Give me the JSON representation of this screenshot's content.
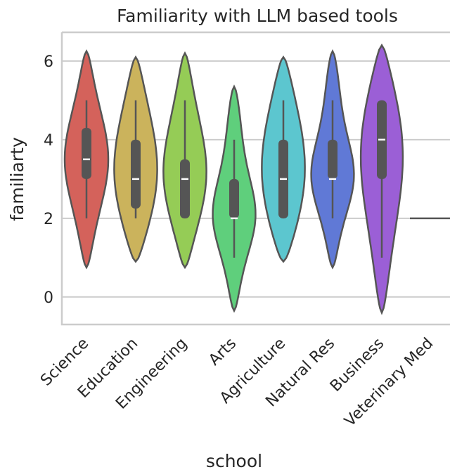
{
  "chart_data": {
    "type": "violin",
    "title": "Familiarity with LLM based tools",
    "x_label": "school",
    "y_label": "familiarty",
    "categories": [
      "Science",
      "Education",
      "Engineering",
      "Arts",
      "Agriculture",
      "Natural Res",
      "Business",
      "Veterinary Med"
    ],
    "colors": [
      "#d4625b",
      "#cbb35c",
      "#95cc56",
      "#5fcf7c",
      "#5cc6cf",
      "#6079d6",
      "#9b5fd6",
      "#9b5fd6"
    ],
    "violin_low": [
      0.75,
      0.9,
      0.75,
      -0.35,
      0.9,
      0.75,
      -0.4,
      2
    ],
    "violin_high": [
      6.25,
      6.1,
      6.2,
      5.35,
      6.1,
      6.25,
      6.4,
      2
    ],
    "min": [
      2,
      2,
      2,
      1,
      2,
      2,
      1,
      2
    ],
    "q1": [
      3,
      2.25,
      2,
      2,
      2,
      3,
      3,
      2
    ],
    "median": [
      3.5,
      3,
      3,
      2,
      3,
      3,
      4,
      2
    ],
    "q3": [
      4.3,
      4,
      3.5,
      3,
      4,
      4,
      5,
      2
    ],
    "max": [
      5,
      5,
      5,
      4,
      5,
      5,
      5,
      2
    ],
    "ylim": [
      -0.7,
      6.73
    ],
    "yticks": [
      0,
      2,
      4,
      6
    ],
    "grid": true
  }
}
